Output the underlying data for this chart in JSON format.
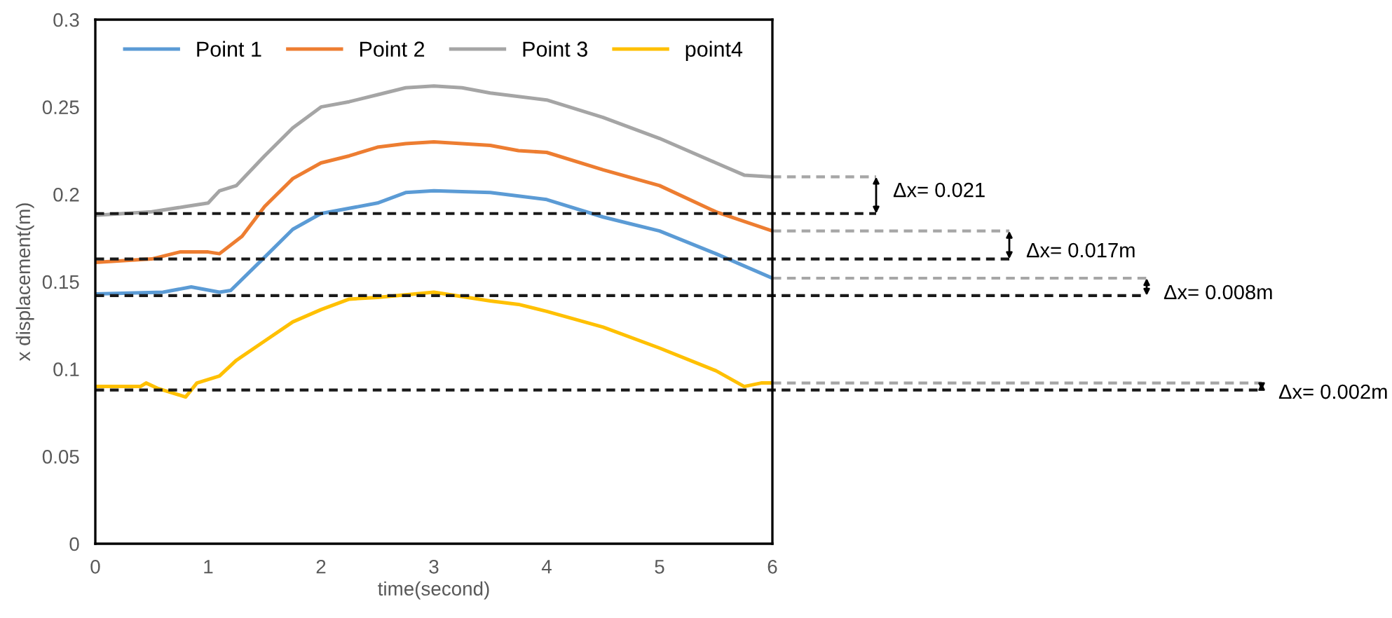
{
  "chart_data": {
    "type": "line",
    "xlabel": "time(second)",
    "ylabel": "x displacement(m)",
    "xlim": [
      0,
      6
    ],
    "ylim": [
      0,
      0.3
    ],
    "xticks": [
      0,
      1,
      2,
      3,
      4,
      5,
      6
    ],
    "yticks": [
      0,
      0.05,
      0.1,
      0.15,
      0.2,
      0.25,
      0.3
    ],
    "grid": false,
    "legend": "top",
    "annotations": [
      "Δx= 0.021",
      "Δx= 0.017m",
      "Δx= 0.008m",
      "Δx= 0.002m"
    ],
    "marker": "none",
    "line_style": "solid",
    "series": [
      {
        "name": "Point 1",
        "color": "#5b9bd5",
        "x": [
          0,
          0.6,
          0.85,
          1.1,
          1.2,
          1.5,
          1.75,
          2.0,
          2.25,
          2.5,
          2.75,
          3.0,
          3.5,
          3.75,
          4.0,
          4.5,
          4.75,
          5.0,
          5.5,
          6.0
        ],
        "values": [
          0.143,
          0.144,
          0.147,
          0.144,
          0.145,
          0.164,
          0.18,
          0.189,
          0.192,
          0.195,
          0.201,
          0.202,
          0.201,
          0.199,
          0.197,
          0.187,
          0.183,
          0.179,
          0.166,
          0.152
        ]
      },
      {
        "name": "Point 2",
        "color": "#ed7d31",
        "x": [
          0,
          0.5,
          0.75,
          1.0,
          1.1,
          1.3,
          1.5,
          1.75,
          2.0,
          2.25,
          2.5,
          2.75,
          3.0,
          3.5,
          3.75,
          4.0,
          4.5,
          5.0,
          5.5,
          6.0
        ],
        "values": [
          0.161,
          0.163,
          0.167,
          0.167,
          0.166,
          0.176,
          0.193,
          0.209,
          0.218,
          0.222,
          0.227,
          0.229,
          0.23,
          0.228,
          0.225,
          0.224,
          0.214,
          0.205,
          0.19,
          0.179
        ]
      },
      {
        "name": "Point 3",
        "color": "#a5a5a5",
        "x": [
          0,
          0.5,
          0.8,
          1.0,
          1.1,
          1.25,
          1.5,
          1.75,
          2.0,
          2.25,
          2.5,
          2.75,
          3.0,
          3.25,
          3.5,
          4.0,
          4.5,
          5.0,
          5.5,
          5.75,
          6.0
        ],
        "values": [
          0.188,
          0.19,
          0.193,
          0.195,
          0.202,
          0.205,
          0.222,
          0.238,
          0.25,
          0.253,
          0.257,
          0.261,
          0.262,
          0.261,
          0.258,
          0.254,
          0.244,
          0.232,
          0.218,
          0.211,
          0.21
        ]
      },
      {
        "name": "point4",
        "color": "#ffc000",
        "x": [
          0,
          0.4,
          0.45,
          0.55,
          0.8,
          0.9,
          1.1,
          1.25,
          1.5,
          1.75,
          2.0,
          2.25,
          2.5,
          3.0,
          3.5,
          3.75,
          4.0,
          4.5,
          5.0,
          5.5,
          5.75,
          5.9,
          6.0
        ],
        "values": [
          0.09,
          0.09,
          0.092,
          0.089,
          0.084,
          0.092,
          0.096,
          0.105,
          0.116,
          0.127,
          0.134,
          0.14,
          0.141,
          0.144,
          0.139,
          0.137,
          0.133,
          0.124,
          0.112,
          0.099,
          0.09,
          0.092,
          0.092
        ]
      }
    ],
    "ref_lines": [
      {
        "axis": "y",
        "value": 0.189,
        "color": "#1a1a1a",
        "line_style": "dashed"
      },
      {
        "axis": "y",
        "value": 0.163,
        "color": "#1a1a1a",
        "line_style": "dashed"
      },
      {
        "axis": "y",
        "value": 0.142,
        "color": "#1a1a1a",
        "line_style": "dashed"
      },
      {
        "axis": "y",
        "value": 0.088,
        "color": "#1a1a1a",
        "line_style": "dashed"
      }
    ]
  }
}
